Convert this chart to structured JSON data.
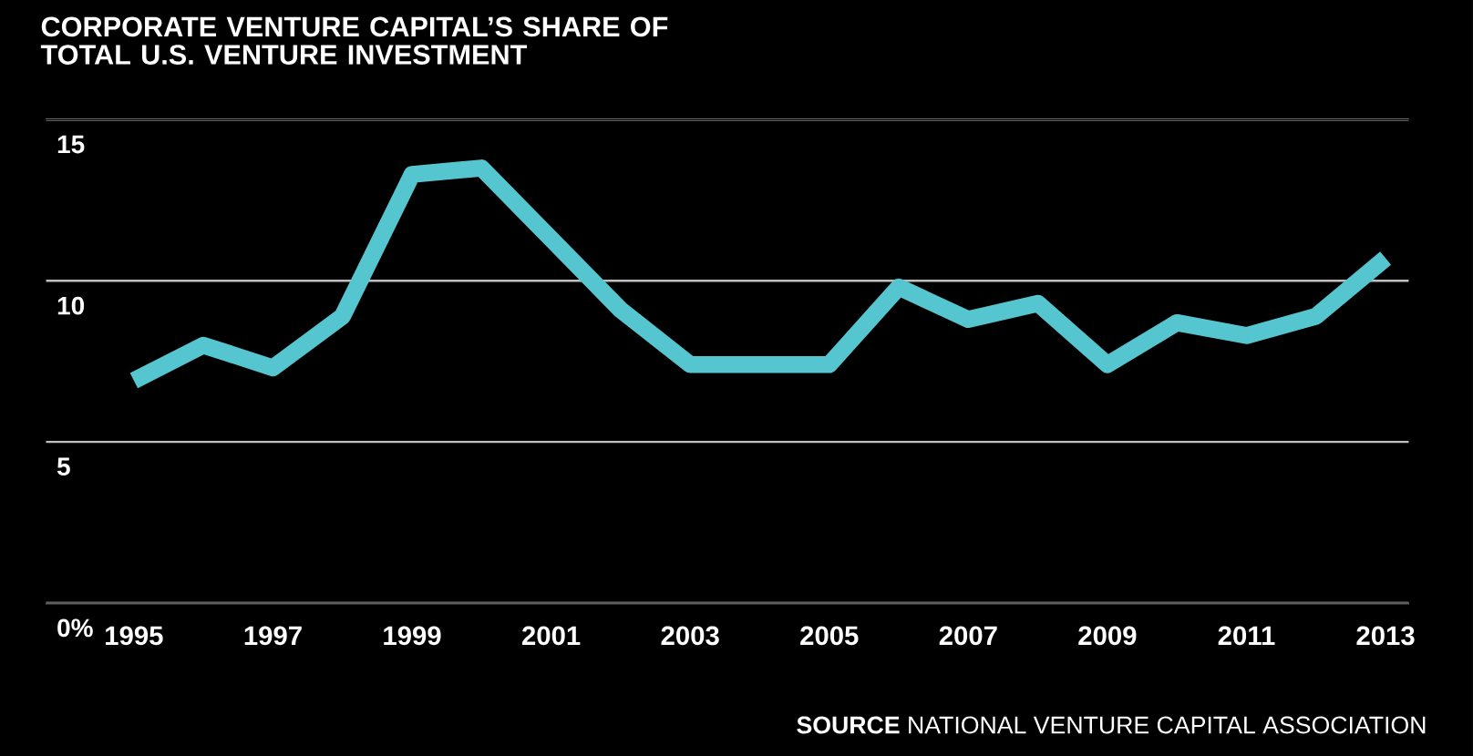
{
  "chart_data": {
    "type": "line",
    "title": "CORPORATE VENTURE CAPITAL’S SHARE OF TOTAL U.S. VENTURE INVESTMENT",
    "x": [
      1995,
      1996,
      1997,
      1998,
      1999,
      2000,
      2001,
      2002,
      2003,
      2004,
      2005,
      2006,
      2007,
      2008,
      2009,
      2010,
      2011,
      2012,
      2013
    ],
    "series": [
      {
        "color": "#55c5cf",
        "values": [
          6.9,
          8.0,
          7.3,
          8.9,
          13.3,
          13.5,
          11.3,
          9.1,
          7.4,
          7.4,
          7.4,
          9.8,
          8.8,
          9.3,
          7.4,
          8.7,
          8.3,
          8.9,
          10.7
        ]
      }
    ],
    "xlim": [
      1993.73,
      2013.34
    ],
    "xticks": [
      1995,
      1997,
      1999,
      2001,
      2003,
      2005,
      2007,
      2009,
      2011,
      2013
    ],
    "ylim": [
      0,
      15
    ],
    "yticks": [
      {
        "value": 0,
        "label": "0%"
      },
      5,
      10,
      15
    ],
    "grid": "y",
    "marker": "none",
    "line_style": "solid",
    "annotations": [
      "**SOURCE** NATIONAL VENTURE CAPITAL ASSOCIATION"
    ]
  }
}
